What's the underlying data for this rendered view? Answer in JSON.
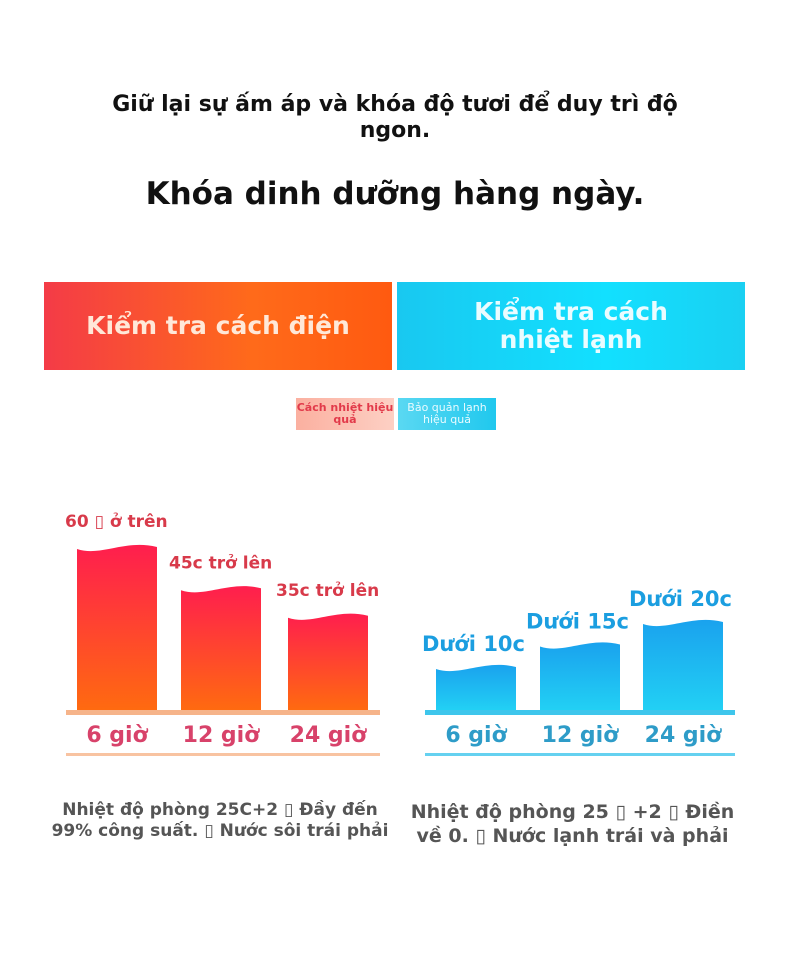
{
  "heading": {
    "line1": "Giữ lại sự ấm áp và khóa độ tươi để duy trì độ ngon.",
    "line2": "Khóa dinh dưỡng hàng ngày."
  },
  "headers": {
    "left": "Kiểm tra cách điện",
    "right": "Kiểm tra cách nhiệt lạnh"
  },
  "tags": {
    "left": "Cách nhiệt hiệu quả",
    "right": "Bảo quản lạnh hiệu quả"
  },
  "colors": {
    "hot_label": "#d83a4a",
    "hot_category": "#d8426a",
    "cold_label": "#1b9ee0",
    "cold_category": "#2e9cc8"
  },
  "chart_data": [
    {
      "type": "bar",
      "categories": [
        "6 giờ",
        "12 giờ",
        "24 giờ"
      ],
      "values": [
        60,
        45,
        35
      ],
      "data_labels": [
        "60 ▯ ở trên",
        "45c trở lên",
        "35c trở lên"
      ]
    },
    {
      "type": "bar",
      "categories": [
        "6 giờ",
        "12 giờ",
        "24 giờ"
      ],
      "values": [
        10,
        15,
        20
      ],
      "data_labels": [
        "Dưới 10c",
        "Dưới 15c",
        "Dưới 20c"
      ]
    }
  ],
  "notes": {
    "left": "Nhiệt độ phòng 25C+2 ▯ Đầy đến 99% công suất. ▯ Nước sôi trái phải",
    "right": "Nhiệt độ phòng 25 ▯ +2 ▯ Điền về 0. ▯ Nước lạnh trái và phải"
  }
}
